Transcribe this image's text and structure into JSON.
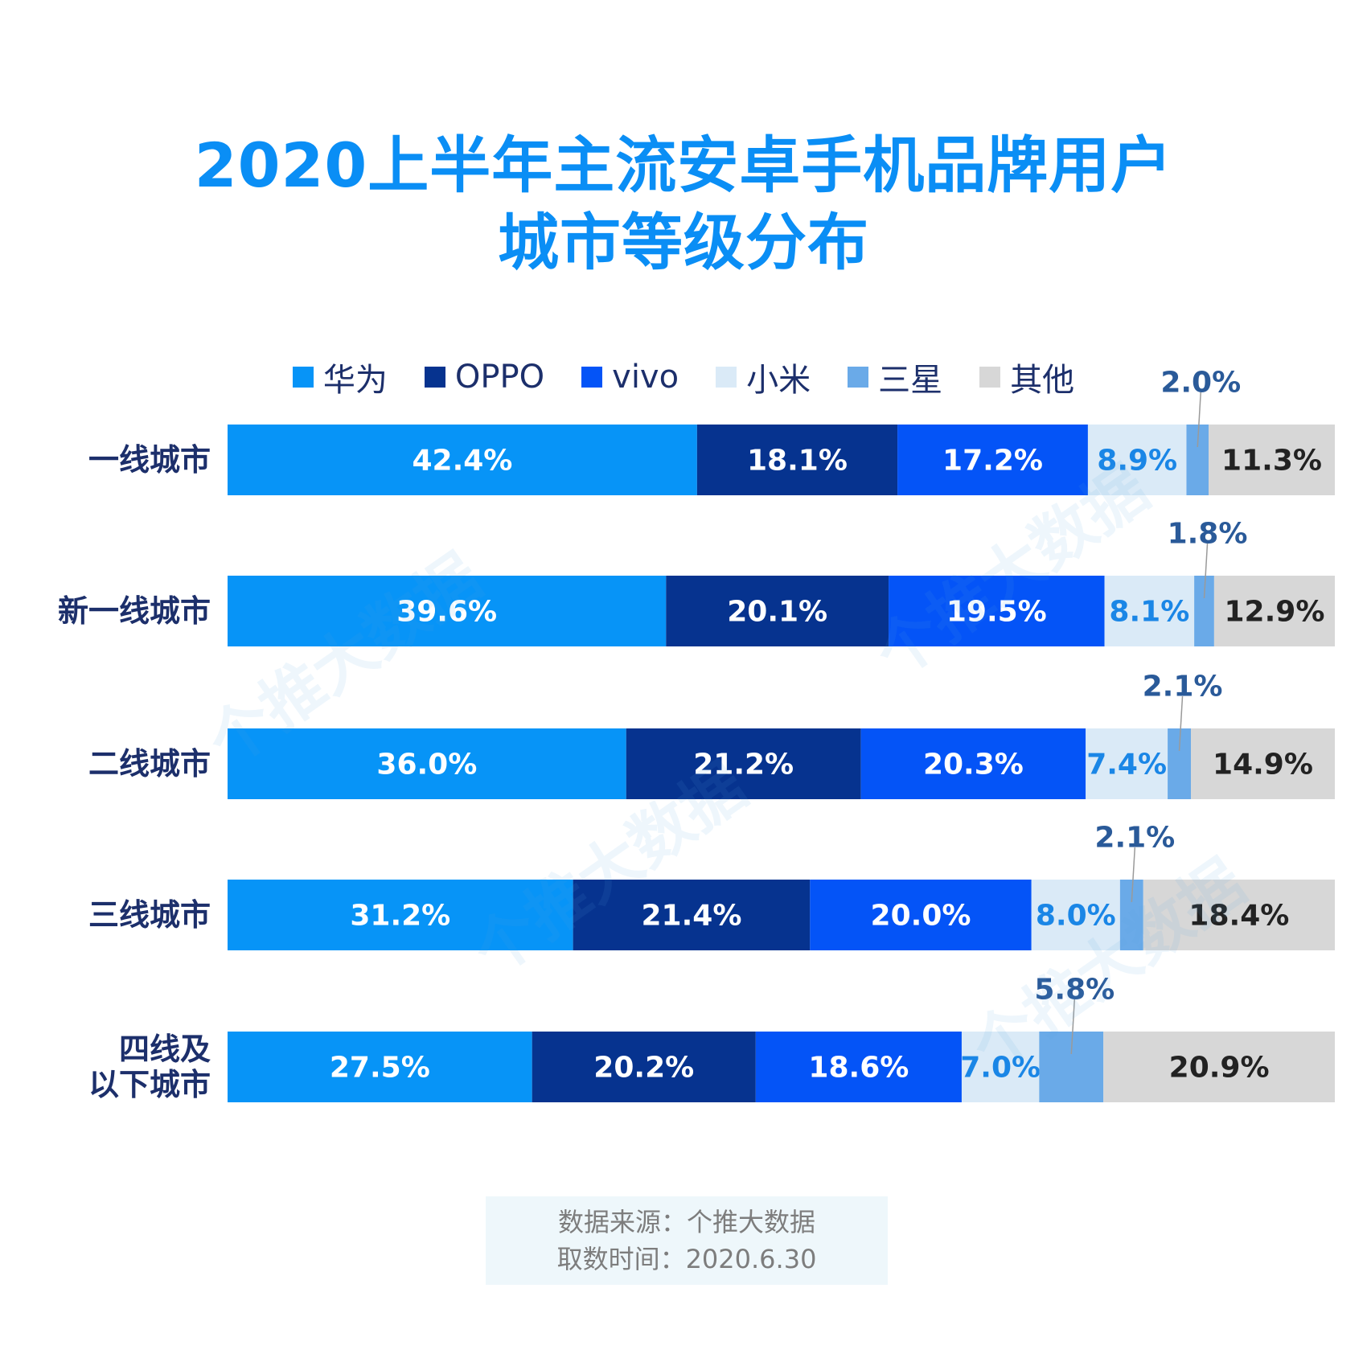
{
  "title_line1": "2020上半年主流安卓手机品牌用户",
  "title_line2": "城市等级分布",
  "legend": [
    {
      "label": "华为",
      "color": "#0794f7"
    },
    {
      "label": "OPPO",
      "color": "#06338f"
    },
    {
      "label": "vivo",
      "color": "#0454f7"
    },
    {
      "label": "小米",
      "color": "#daeaf7"
    },
    {
      "label": "三星",
      "color": "#6aaae8"
    },
    {
      "label": "其他",
      "color": "#d7d7d7"
    }
  ],
  "label_colors": {
    "dark_bg_text": "#ffffff",
    "light_blue_text": "#1a86e6",
    "gray_text": "#222222",
    "callout_text": "#2a5a99",
    "category_text": "#1c2f6b"
  },
  "chart_data": {
    "type": "bar",
    "orientation": "horizontal",
    "stacked": true,
    "title": "2020上半年主流安卓手机品牌用户城市等级分布",
    "categories": [
      "一线城市",
      "新一线城市",
      "二线城市",
      "三线城市",
      "四线及以下城市"
    ],
    "category_labels": [
      [
        "一线城市"
      ],
      [
        "新一线城市"
      ],
      [
        "二线城市"
      ],
      [
        "三线城市"
      ],
      [
        "四线及",
        "以下城市"
      ]
    ],
    "unit": "%",
    "xlim": [
      0,
      100
    ],
    "series": [
      {
        "name": "华为",
        "values": [
          42.4,
          39.6,
          36.0,
          31.2,
          27.5
        ],
        "labels": [
          "42.4%",
          "39.6%",
          "36.0%",
          "31.2%",
          "27.5%"
        ]
      },
      {
        "name": "OPPO",
        "values": [
          18.1,
          20.1,
          21.2,
          21.4,
          20.2
        ],
        "labels": [
          "18.1%",
          "20.1%",
          "21.2%",
          "21.4%",
          "20.2%"
        ]
      },
      {
        "name": "vivo",
        "values": [
          17.2,
          19.5,
          20.3,
          20.0,
          18.6
        ],
        "labels": [
          "17.2%",
          "19.5%",
          "20.3%",
          "20.0%",
          "18.6%"
        ]
      },
      {
        "name": "小米",
        "values": [
          8.9,
          8.1,
          7.4,
          8.0,
          7.0
        ],
        "labels": [
          "8.9%",
          "8.1%",
          "7.4%",
          "8.0%",
          "7.0%"
        ]
      },
      {
        "name": "三星",
        "values": [
          2.0,
          1.8,
          2.1,
          2.1,
          5.8
        ],
        "labels": [
          "2.0%",
          "1.8%",
          "2.1%",
          "2.1%",
          "5.8%"
        ],
        "callout": true
      },
      {
        "name": "其他",
        "values": [
          11.3,
          12.9,
          14.9,
          18.4,
          20.9
        ],
        "labels": [
          "11.3%",
          "12.9%",
          "14.9%",
          "18.4%",
          "20.9%"
        ]
      }
    ]
  },
  "source_line1": "数据来源：个推大数据",
  "source_line2": "取数时间：2020.6.30",
  "watermark_text": "个推大数据"
}
